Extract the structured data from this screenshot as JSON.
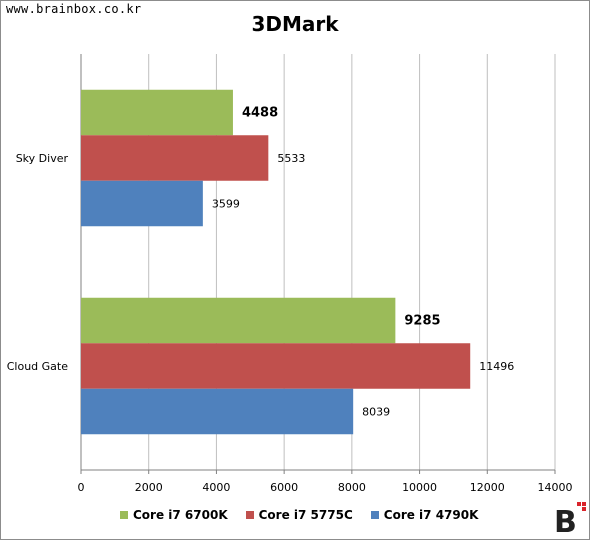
{
  "watermark": "www.brainbox.co.kr",
  "logo_text": "B",
  "colors": {
    "gridline": "#bfbfbf",
    "axis": "#808080",
    "label_text": "#000000"
  },
  "chart_data": {
    "type": "bar",
    "orientation": "horizontal",
    "title": "3DMark",
    "categories": [
      "Sky Diver",
      "Cloud Gate"
    ],
    "series": [
      {
        "name": "Core i7 6700K",
        "color": "#9bbb59",
        "values": [
          4488,
          9285
        ],
        "label_bold": true
      },
      {
        "name": "Core i7 5775C",
        "color": "#c0504d",
        "values": [
          5533,
          11496
        ],
        "label_bold": false
      },
      {
        "name": "Core i7 4790K",
        "color": "#4f81bd",
        "values": [
          3599,
          8039
        ],
        "label_bold": false
      }
    ],
    "xlim": [
      0,
      14000
    ],
    "xticks": [
      0,
      2000,
      4000,
      6000,
      8000,
      10000,
      12000,
      14000
    ],
    "grid": true,
    "legend_position": "bottom"
  }
}
